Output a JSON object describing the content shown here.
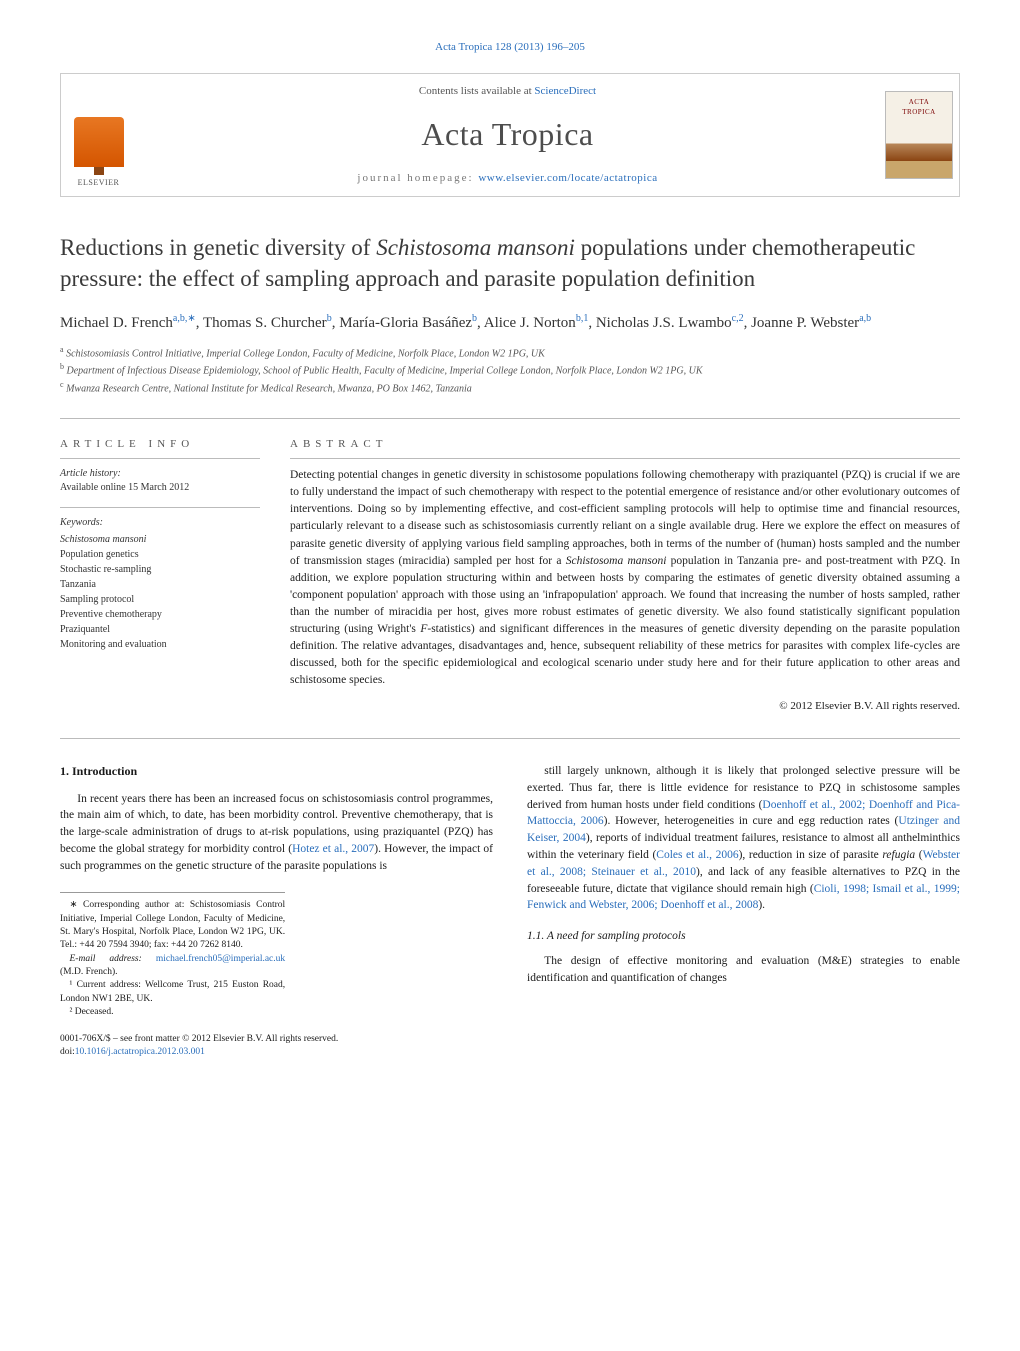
{
  "top_citation": "Acta Tropica 128 (2013) 196–205",
  "header": {
    "contents_prefix": "Contents lists available at ",
    "contents_link": "ScienceDirect",
    "journal_name": "Acta Tropica",
    "homepage_prefix": "journal homepage: ",
    "homepage_link": "www.elsevier.com/locate/actatropica",
    "publisher_logo_label": "ELSEVIER"
  },
  "title_parts": {
    "pre": "Reductions in genetic diversity of ",
    "italic": "Schistosoma mansoni",
    "post": " populations under chemotherapeutic pressure: the effect of sampling approach and parasite population definition"
  },
  "authors": [
    {
      "name": "Michael D. French",
      "sup": "a,b,∗"
    },
    {
      "name": "Thomas S. Churcher",
      "sup": "b"
    },
    {
      "name": "María-Gloria Basáñez",
      "sup": "b"
    },
    {
      "name": "Alice J. Norton",
      "sup": "b,1"
    },
    {
      "name": "Nicholas J.S. Lwambo",
      "sup": "c,2"
    },
    {
      "name": "Joanne P. Webster",
      "sup": "a,b"
    }
  ],
  "affiliations": [
    {
      "sup": "a",
      "text": "Schistosomiasis Control Initiative, Imperial College London, Faculty of Medicine, Norfolk Place, London W2 1PG, UK"
    },
    {
      "sup": "b",
      "text": "Department of Infectious Disease Epidemiology, School of Public Health, Faculty of Medicine, Imperial College London, Norfolk Place, London W2 1PG, UK"
    },
    {
      "sup": "c",
      "text": "Mwanza Research Centre, National Institute for Medical Research, Mwanza, PO Box 1462, Tanzania"
    }
  ],
  "article_info": {
    "heading": "article info",
    "history_label": "Article history:",
    "history_value": "Available online 15 March 2012",
    "keywords_label": "Keywords:",
    "keywords": [
      "<em>Schistosoma mansoni</em>",
      "Population genetics",
      "Stochastic re-sampling",
      "Tanzania",
      "Sampling protocol",
      "Preventive chemotherapy",
      "Praziquantel",
      "Monitoring and evaluation"
    ]
  },
  "abstract": {
    "heading": "abstract",
    "text": "Detecting potential changes in genetic diversity in schistosome populations following chemotherapy with praziquantel (PZQ) is crucial if we are to fully understand the impact of such chemotherapy with respect to the potential emergence of resistance and/or other evolutionary outcomes of interventions. Doing so by implementing effective, and cost-efficient sampling protocols will help to optimise time and financial resources, particularly relevant to a disease such as schistosomiasis currently reliant on a single available drug. Here we explore the effect on measures of parasite genetic diversity of applying various field sampling approaches, both in terms of the number of (human) hosts sampled and the number of transmission stages (miracidia) sampled per host for a <em>Schistosoma mansoni</em> population in Tanzania pre- and post-treatment with PZQ. In addition, we explore population structuring within and between hosts by comparing the estimates of genetic diversity obtained assuming a 'component population' approach with those using an 'infrapopulation' approach. We found that increasing the number of hosts sampled, rather than the number of miracidia per host, gives more robust estimates of genetic diversity. We also found statistically significant population structuring (using Wright's <em>F</em>-statistics) and significant differences in the measures of genetic diversity depending on the parasite population definition. The relative advantages, disadvantages and, hence, subsequent reliability of these metrics for parasites with complex life-cycles are discussed, both for the specific epidemiological and ecological scenario under study here and for their future application to other areas and schistosome species.",
    "copyright": "© 2012 Elsevier B.V. All rights reserved."
  },
  "body": {
    "section1_heading": "1. Introduction",
    "section1_para1_pre": "In recent years there has been an increased focus on schistosomiasis control programmes, the main aim of which, to date, has been morbidity control. Preventive chemotherapy, that is the large-scale administration of drugs to at-risk populations, using praziquantel (PZQ) has become the global strategy for morbidity control (",
    "section1_para1_cite1": "Hotez et al., 2007",
    "section1_para1_post": "). However, the impact of such programmes on the genetic structure of the parasite populations is",
    "col2_para1": "still largely unknown, although it is likely that prolonged selective pressure will be exerted. Thus far, there is little evidence for resistance to PZQ in schistosome samples derived from human hosts under field conditions (<span class=\"citation-link\">Doenhoff et al., 2002; Doenhoff and Pica-Mattoccia, 2006</span>). However, heterogeneities in cure and egg reduction rates (<span class=\"citation-link\">Utzinger and Keiser, 2004</span>), reports of individual treatment failures, resistance to almost all anthelminthics within the veterinary field (<span class=\"citation-link\">Coles et al., 2006</span>), reduction in size of parasite <em>refugia</em> (<span class=\"citation-link\">Webster et al., 2008; Steinauer et al., 2010</span>), and lack of any feasible alternatives to PZQ in the foreseeable future, dictate that vigilance should remain high (<span class=\"citation-link\">Cioli, 1998; Ismail et al., 1999; Fenwick and Webster, 2006; Doenhoff et al., 2008</span>).",
    "section11_heading": "1.1. A need for sampling protocols",
    "section11_para1": "The design of effective monitoring and evaluation (M&E) strategies to enable identification and quantification of changes"
  },
  "footnotes": {
    "corr": "∗ Corresponding author at: Schistosomiasis Control Initiative, Imperial College London, Faculty of Medicine, St. Mary's Hospital, Norfolk Place, London W2 1PG, UK. Tel.: +44 20 7594 3940; fax: +44 20 7262 8140.",
    "email_label": "E-mail address: ",
    "email": "michael.french05@imperial.ac.uk",
    "email_suffix": " (M.D. French).",
    "note1": "¹ Current address: Wellcome Trust, 215 Euston Road, London NW1 2BE, UK.",
    "note2": "² Deceased."
  },
  "bottom": {
    "line1": "0001-706X/$ – see front matter © 2012 Elsevier B.V. All rights reserved.",
    "doi_label": "doi:",
    "doi": "10.1016/j.actatropica.2012.03.001"
  },
  "style": {
    "link_color": "#2a6ebb",
    "text_color": "#1a1a1a",
    "border_color": "#bbbbbb",
    "heading_color": "#555555",
    "title_font_size": 23,
    "journal_font_size": 32,
    "body_font_size": 11.5,
    "abstract_font_size": 11.5,
    "info_font_size": 10
  }
}
